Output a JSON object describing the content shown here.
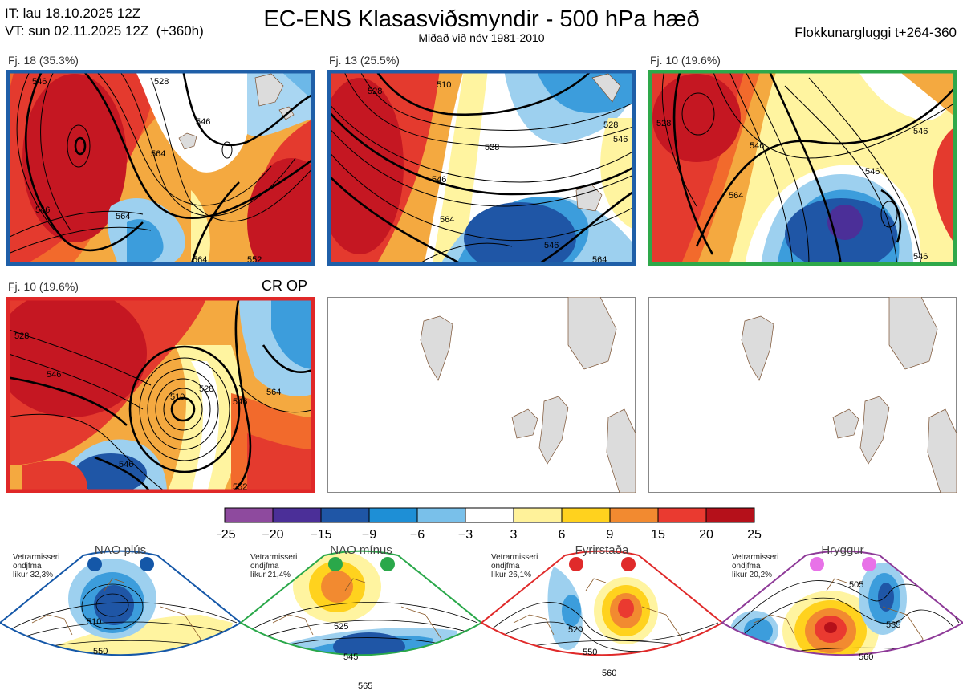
{
  "header": {
    "it_line": "IT: lau 18.10.2025 12Z",
    "vt_line": "VT: sun 02.11.2025 12Z  (+360h)",
    "title": "EC-ENS Klasasviðsmyndir - 500 hPa hæð",
    "subtitle": "Miðað við nóv 1981-2010",
    "window": "Flokkunargluggi t+264-360"
  },
  "panels": [
    {
      "label": "Fj. 18 (35.3%)",
      "border_color": "#1f5fa8",
      "contours": [
        "546",
        "528",
        "546",
        "564",
        "546",
        "564",
        "564",
        "552"
      ]
    },
    {
      "label": "Fj. 13 (25.5%)",
      "border_color": "#1f5fa8",
      "contours": [
        "528",
        "510",
        "528",
        "528",
        "546",
        "546",
        "564",
        "546",
        "564"
      ]
    },
    {
      "label": "Fj. 10 (19.6%)",
      "border_color": "#2ea84a",
      "contours": [
        "528",
        "546",
        "546",
        "564",
        "546",
        "546"
      ]
    },
    {
      "label": "Fj. 10 (19.6%)",
      "border_color": "#e02828",
      "contours": [
        "528",
        "546",
        "510",
        "528",
        "546",
        "564",
        "546",
        "552"
      ]
    }
  ],
  "cr_op_label": "CR OP",
  "colorbar": {
    "ticks": [
      "-25",
      "-20",
      "-15",
      "-9",
      "-6",
      "-3",
      "3",
      "6",
      "9",
      "15",
      "20",
      "25"
    ],
    "colors": [
      "#8e4a9e",
      "#4b2f98",
      "#1f56a6",
      "#1e8fd6",
      "#79c0ea",
      "#ffffff",
      "#fff29a",
      "#ffd21e",
      "#f28a30",
      "#ea3a30",
      "#b5101a"
    ]
  },
  "regimes": [
    {
      "name": "NAO plús",
      "stat_lines": [
        "Vetrarmisseri",
        "ondjfma",
        "líkur 32,3%"
      ],
      "dot_color": "#1457a8",
      "line_color": "#1457a8",
      "contours": [
        "510",
        "550"
      ]
    },
    {
      "name": "NAO mínus",
      "stat_lines": [
        "Vetrarmisseri",
        "ondjfma",
        "líkur 21,4%"
      ],
      "dot_color": "#2aa84a",
      "line_color": "#2aa84a",
      "contours": [
        "525",
        "545",
        "565"
      ]
    },
    {
      "name": "Fyrirstaða",
      "stat_lines": [
        "Vetrarmisseri",
        "ondjfma",
        "líkur 26,1%"
      ],
      "dot_color": "#e02a2a",
      "line_color": "#e02a2a",
      "contours": [
        "520",
        "550",
        "560"
      ]
    },
    {
      "name": "Hryggur",
      "stat_lines": [
        "Vetrarmisseri",
        "ondjfma",
        "líkur 20,2%"
      ],
      "dot_color": "#e872e8",
      "line_color": "#8e3a98",
      "contours": [
        "505",
        "535",
        "560"
      ]
    }
  ]
}
